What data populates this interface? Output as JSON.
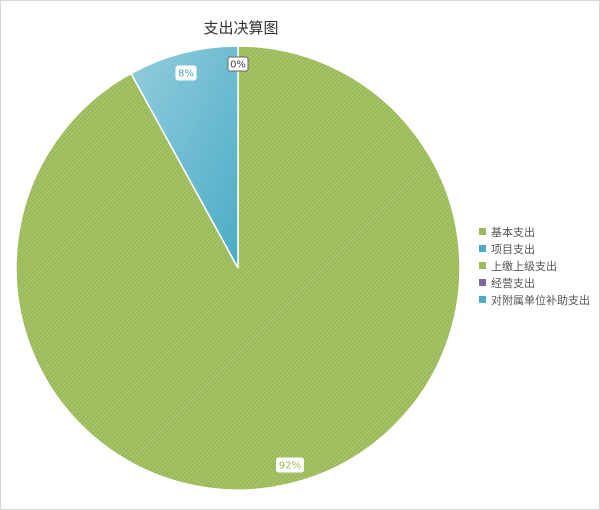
{
  "chart_data": {
    "type": "pie",
    "title": "支出决算图",
    "categories": [
      "基本支出",
      "项目支出",
      "上缴上级支出",
      "经营支出",
      "对附属单位补助支出"
    ],
    "values": [
      92,
      8,
      0,
      0,
      0
    ],
    "labels": [
      "92%",
      "8%",
      "0%"
    ],
    "colors": [
      "#9bbb59",
      "#4bacc6",
      "#9bbb59",
      "#8064a2",
      "#4bacc6"
    ],
    "legend_position": "right"
  }
}
